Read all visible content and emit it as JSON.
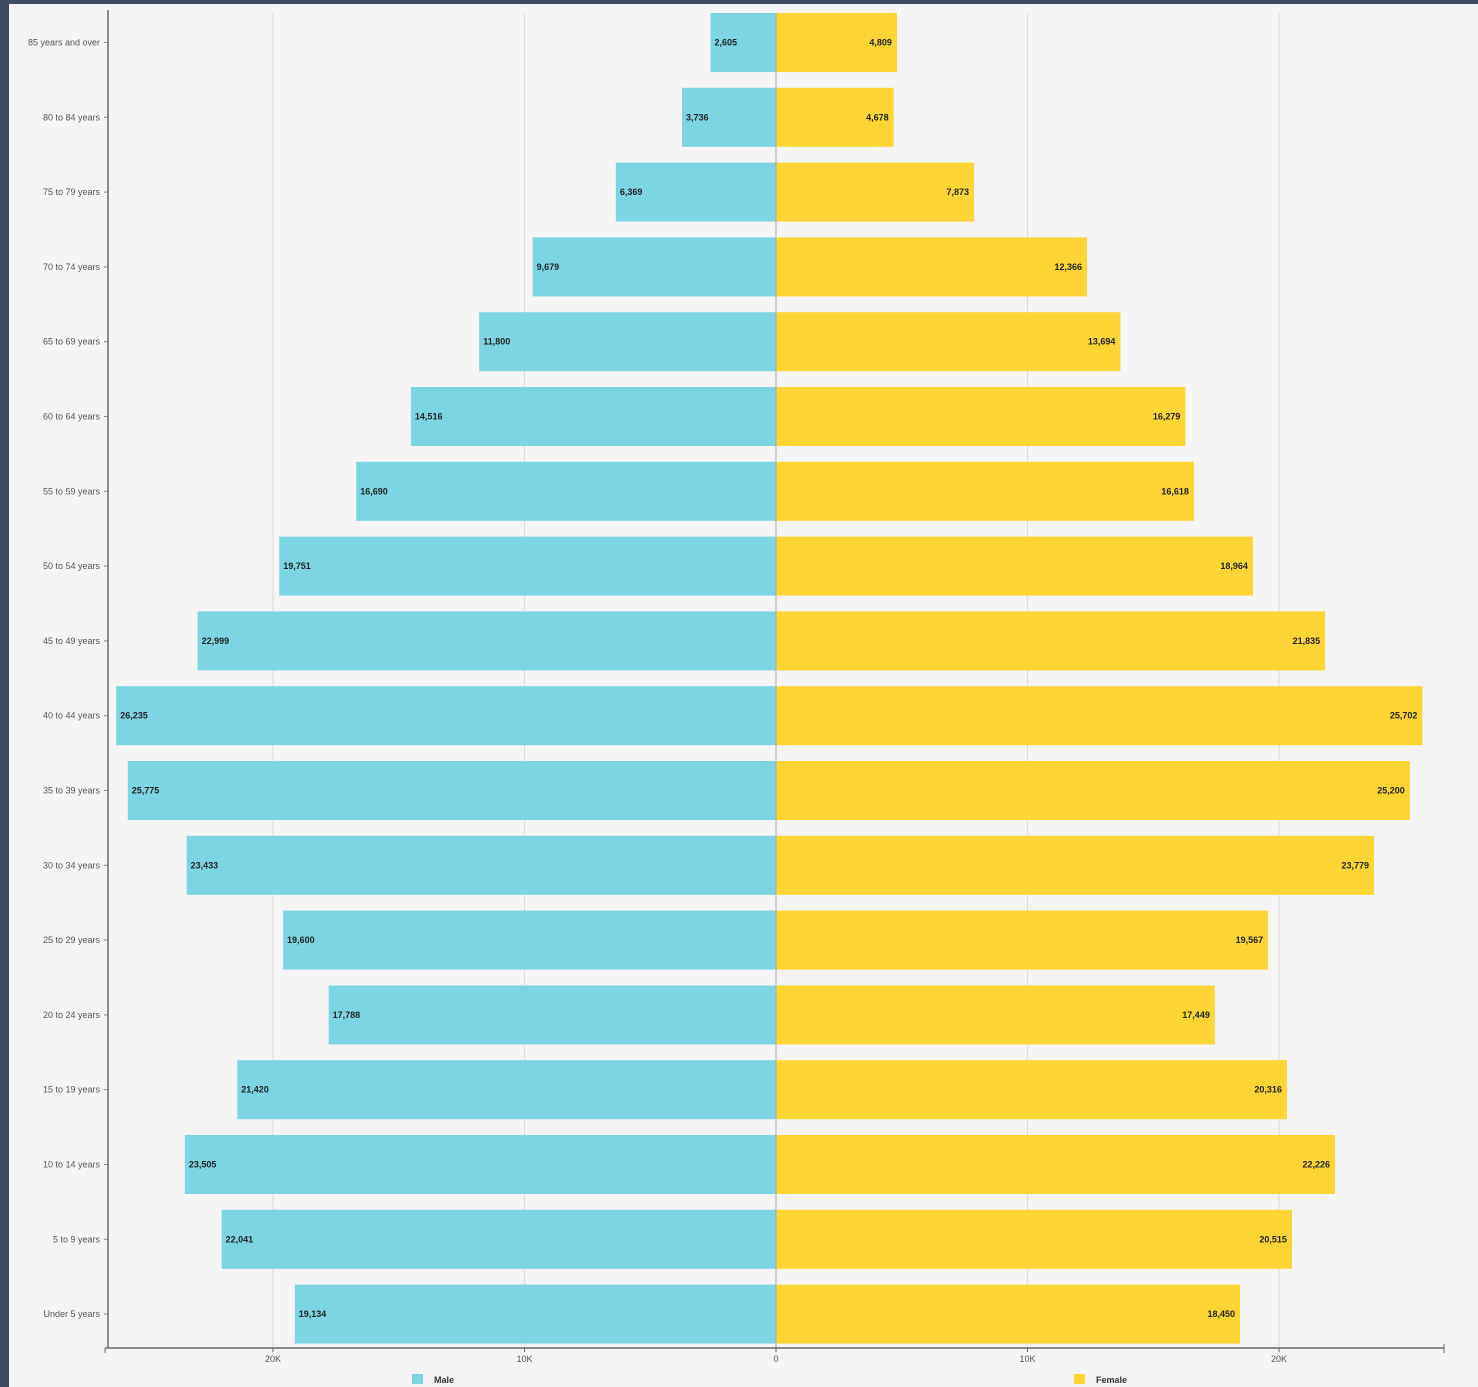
{
  "chart_data": {
    "type": "bar",
    "orientation": "horizontal",
    "categories": [
      "85 years and over",
      "80 to 84 years",
      "75 to 79 years",
      "70 to 74 years",
      "65 to 69 years",
      "60 to 64 years",
      "55 to 59 years",
      "50 to 54 years",
      "45 to 49 years",
      "40 to 44 years",
      "35 to 39 years",
      "30 to 34 years",
      "25 to 29 years",
      "20 to 24 years",
      "15 to 19 years",
      "10 to 14 years",
      "5 to 9 years",
      "Under 5 years"
    ],
    "series": [
      {
        "name": "Male",
        "color": "#7dd5e3",
        "values": [
          2605,
          3736,
          6369,
          9679,
          11800,
          14516,
          16690,
          19751,
          22999,
          26235,
          25775,
          23433,
          19600,
          17788,
          21420,
          23505,
          22041,
          19134
        ],
        "labels": [
          "2,605",
          "3,736",
          "6,369",
          "9,679",
          "11,800",
          "14,516",
          "16,690",
          "19,751",
          "22,999",
          "26,235",
          "25,775",
          "23,433",
          "19,600",
          "17,788",
          "21,420",
          "23,505",
          "22,041",
          "19,134"
        ]
      },
      {
        "name": "Female",
        "color": "#fdd535",
        "values": [
          4809,
          4678,
          7873,
          12366,
          13694,
          16279,
          16618,
          18964,
          21835,
          25702,
          25200,
          23779,
          19567,
          17449,
          20316,
          22226,
          20515,
          18450
        ],
        "labels": [
          "4,809",
          "4,678",
          "7,873",
          "12,366",
          "13,694",
          "16,279",
          "16,618",
          "18,964",
          "21,835",
          "25,702",
          "25,200",
          "23,779",
          "19,567",
          "17,449",
          "20,316",
          "22,226",
          "20,515",
          "18,450"
        ]
      }
    ],
    "x_ticks": [
      {
        "value": -20000,
        "label": "20K"
      },
      {
        "value": -10000,
        "label": "10K"
      },
      {
        "value": 0,
        "label": "0"
      },
      {
        "value": 10000,
        "label": "10K"
      },
      {
        "value": 20000,
        "label": "20K"
      }
    ],
    "xlim": [
      -26600,
      26600
    ],
    "grid": true,
    "legend_position": "bottom"
  }
}
